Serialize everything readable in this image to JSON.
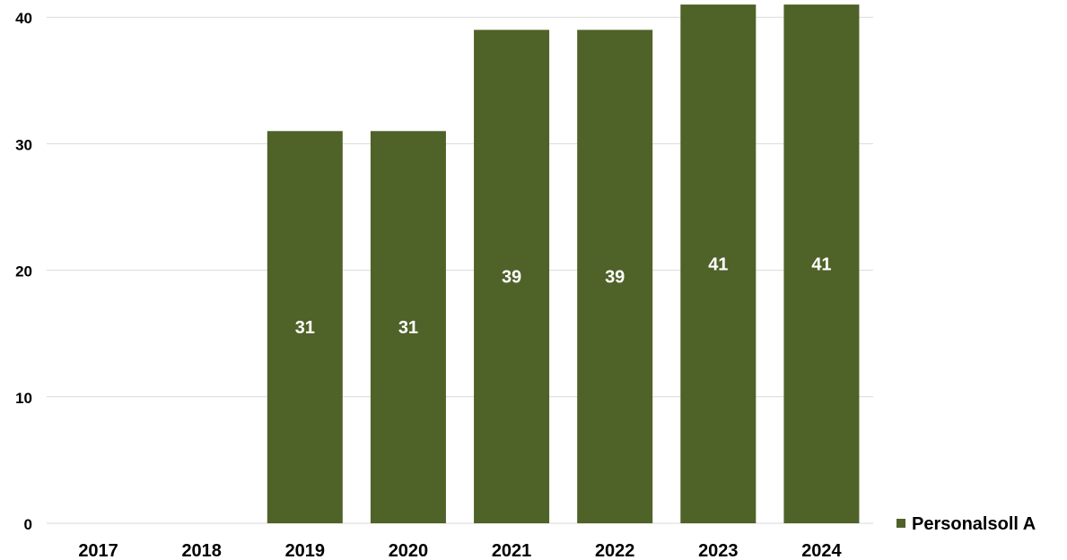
{
  "chart_data": {
    "type": "bar",
    "categories": [
      "2017",
      "2018",
      "2019",
      "2020",
      "2021",
      "2022",
      "2023",
      "2024"
    ],
    "series": [
      {
        "name": "Personalsoll A",
        "values": [
          0,
          0,
          31,
          31,
          39,
          39,
          41,
          41
        ],
        "color": "#4f6228"
      }
    ],
    "data_labels": [
      "",
      "",
      "31",
      "31",
      "39",
      "39",
      "41",
      "41"
    ],
    "yticks": [
      "0",
      "10",
      "20",
      "30",
      "40"
    ],
    "ylim": [
      0,
      40
    ],
    "grid": true,
    "legend_position": "right",
    "title": "",
    "xlabel": "",
    "ylabel": ""
  }
}
